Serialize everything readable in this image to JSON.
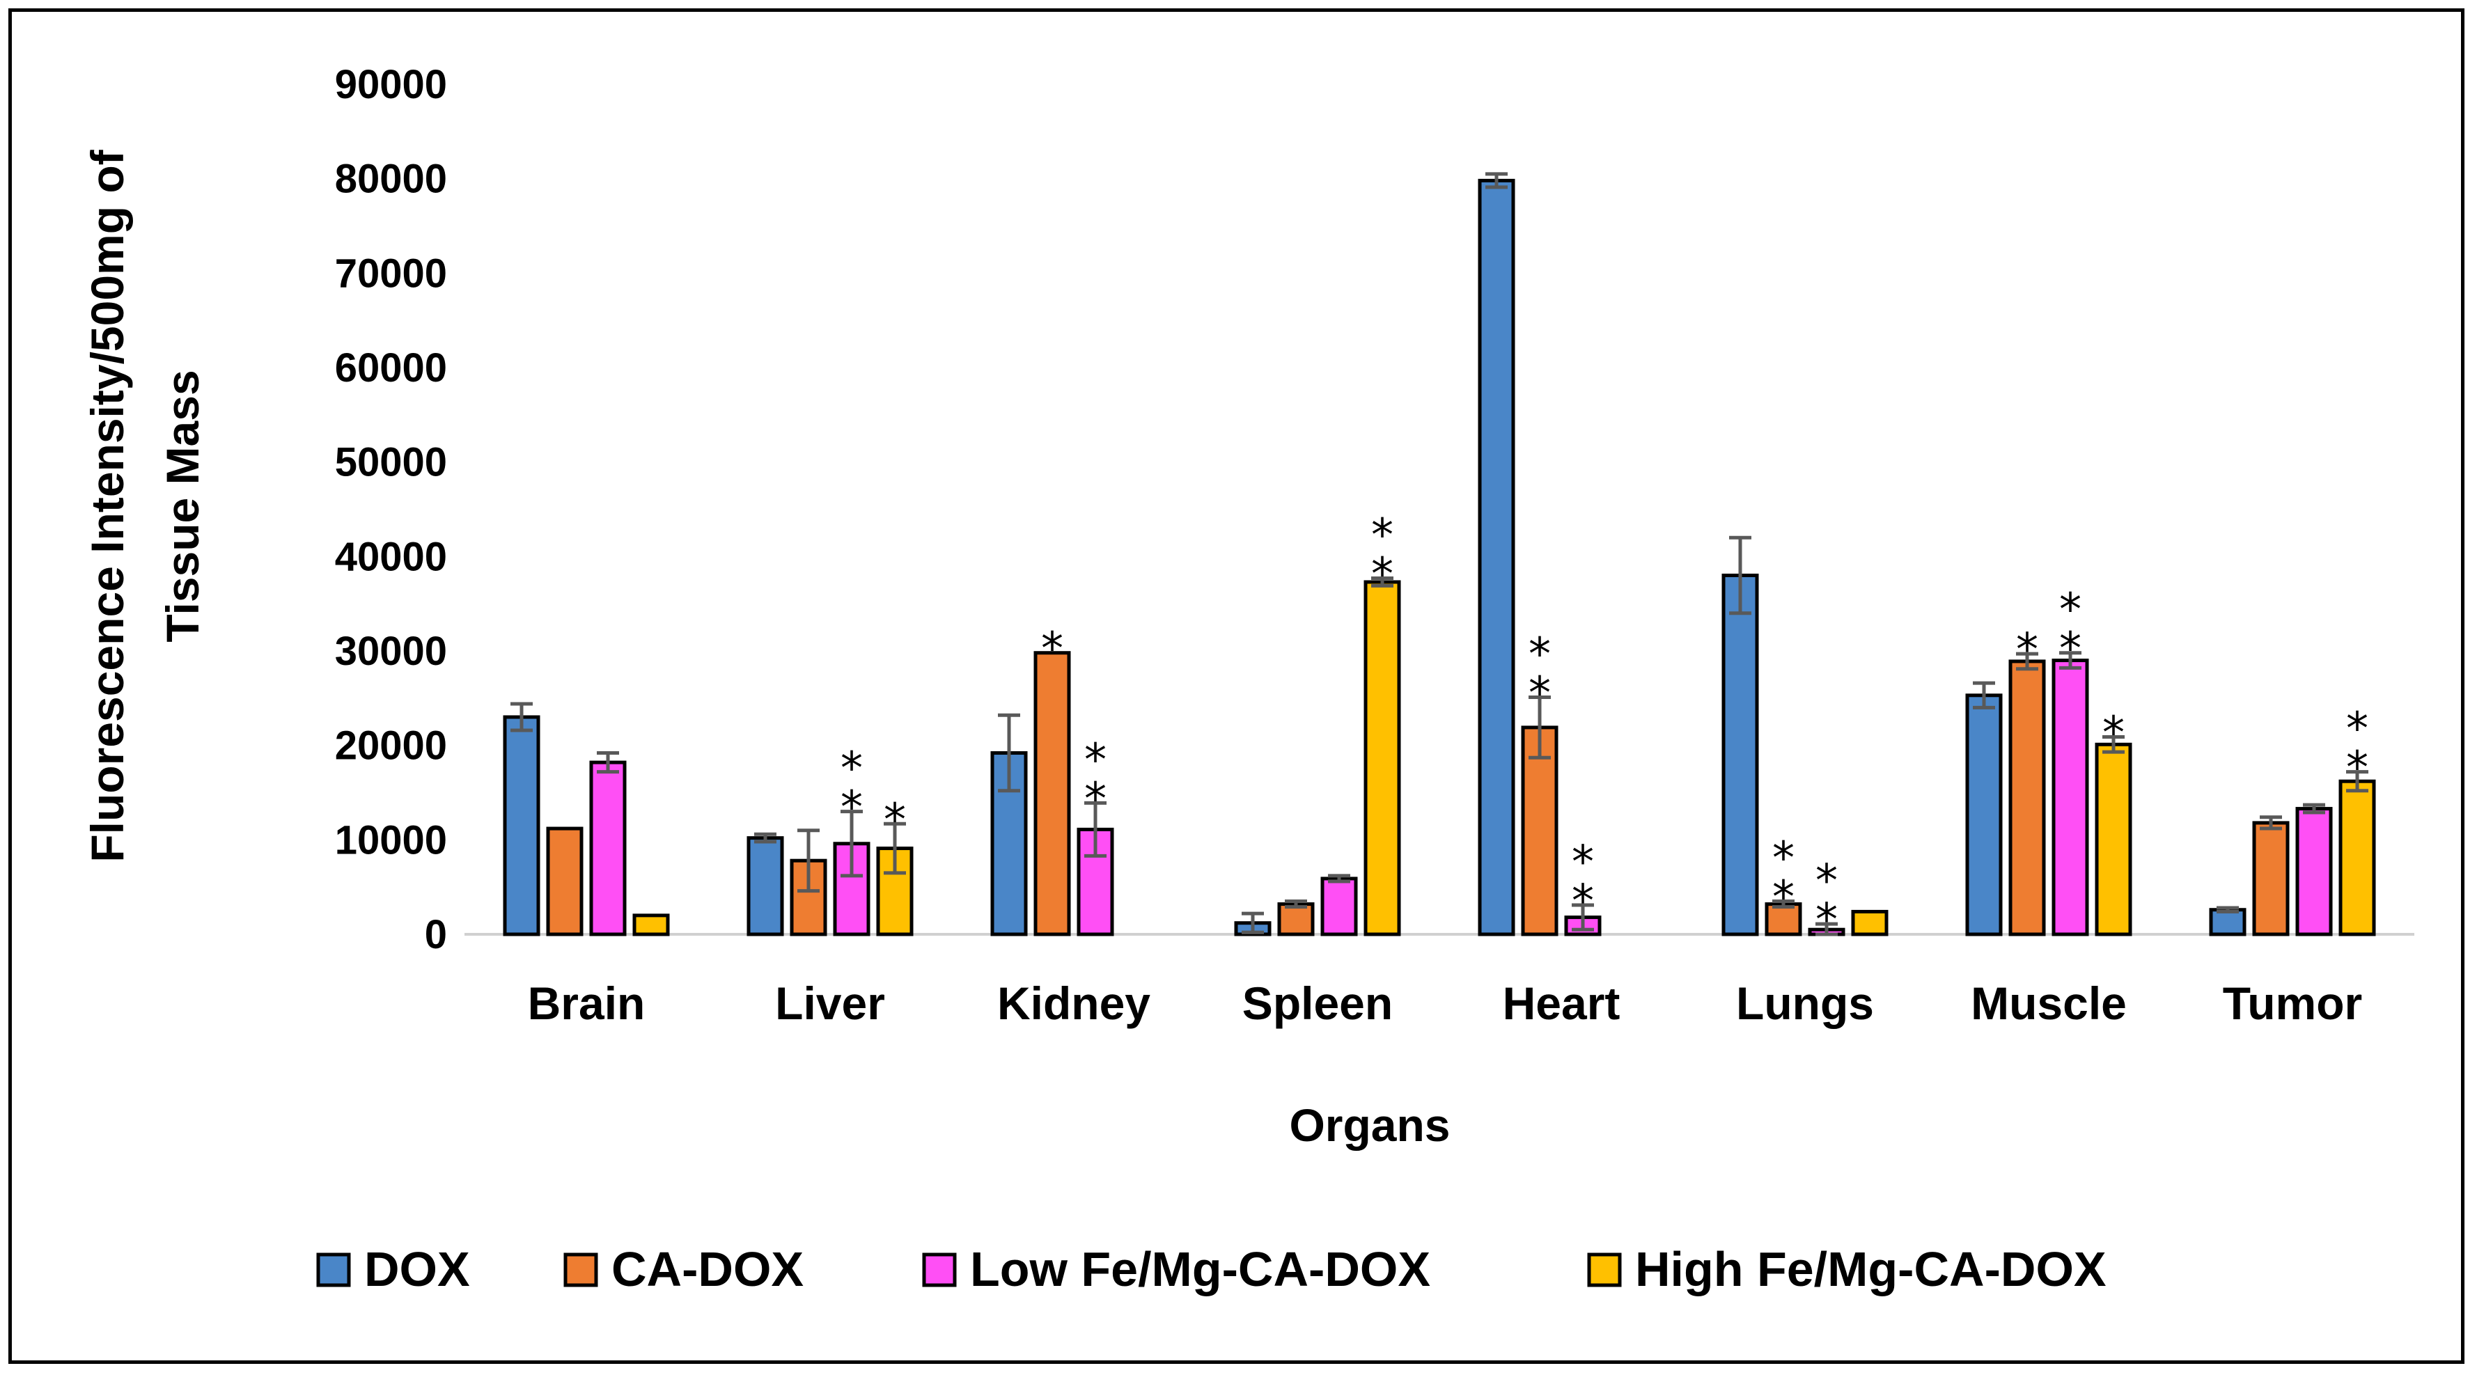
{
  "chart_data": {
    "type": "bar",
    "title": "",
    "xlabel": "Organs",
    "ylabel": [
      "Fluorescence Intensity/500mg of",
      "Tissue Mass"
    ],
    "ylim": [
      0,
      90000
    ],
    "yticks": [
      0,
      10000,
      20000,
      30000,
      40000,
      50000,
      60000,
      70000,
      80000,
      90000
    ],
    "grid": false,
    "legend_position": "bottom",
    "categories": [
      "Brain",
      "Liver",
      "Kidney",
      "Spleen",
      "Heart",
      "Lungs",
      "Muscle",
      "Tumor"
    ],
    "series": [
      {
        "name": "DOX",
        "color": "#4a86c8",
        "values": [
          23000,
          10200,
          19200,
          1200,
          79800,
          38000,
          25300,
          2600
        ],
        "errors": [
          1400,
          400,
          4000,
          1000,
          700,
          4000,
          1300,
          200
        ],
        "significance": [
          "",
          "",
          "",
          "",
          "",
          "",
          "",
          ""
        ]
      },
      {
        "name": "CA-DOX",
        "color": "#ee7d31",
        "values": [
          11200,
          7800,
          29800,
          3200,
          21900,
          3200,
          28900,
          11800
        ],
        "errors": [
          0,
          3200,
          0,
          300,
          3200,
          300,
          800,
          600
        ],
        "significance": [
          "",
          "",
          "*",
          "",
          "**",
          "**",
          "*",
          ""
        ]
      },
      {
        "name": "Low Fe/Mg-CA-DOX",
        "color": "#ff4ff5",
        "values": [
          18200,
          9600,
          11100,
          5900,
          1800,
          500,
          29000,
          13300
        ],
        "errors": [
          1000,
          3400,
          2800,
          300,
          1300,
          600,
          800,
          400
        ],
        "significance": [
          "",
          "**",
          "**",
          "",
          "**",
          "**",
          "**",
          ""
        ]
      },
      {
        "name": "High Fe/Mg-CA-DOX",
        "color": "#ffc000",
        "values": [
          2000,
          9100,
          0,
          37300,
          0,
          2400,
          20100,
          16200
        ],
        "errors": [
          0,
          2600,
          0,
          400,
          0,
          0,
          800,
          1000
        ],
        "significance": [
          "",
          "*",
          "",
          "**",
          "",
          "",
          "*",
          "**"
        ]
      }
    ]
  }
}
